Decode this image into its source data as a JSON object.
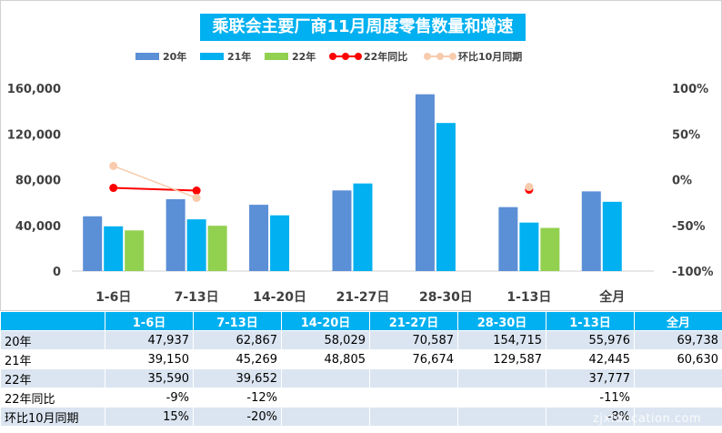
{
  "chart_data": {
    "type": "bar",
    "title": "乘联会主要厂商11月周度零售数量和增速",
    "categories": [
      "1-6日",
      "7-13日",
      "14-20日",
      "21-27日",
      "28-30日",
      "1-13日",
      "全月"
    ],
    "series": [
      {
        "name": "20年",
        "type": "bar",
        "axis": "left",
        "color": "#5b8fd6",
        "values": [
          47937,
          62867,
          58029,
          70587,
          154715,
          55976,
          69738
        ]
      },
      {
        "name": "21年",
        "type": "bar",
        "axis": "left",
        "color": "#00b0f0",
        "values": [
          39150,
          45269,
          48805,
          76674,
          129587,
          42445,
          60630
        ]
      },
      {
        "name": "22年",
        "type": "bar",
        "axis": "left",
        "color": "#92d050",
        "values": [
          35590,
          39652,
          null,
          null,
          null,
          37777,
          null
        ]
      },
      {
        "name": "22年同比",
        "type": "line",
        "axis": "right",
        "color": "#ff0000",
        "values": [
          -9,
          -12,
          null,
          null,
          null,
          -11,
          null
        ]
      },
      {
        "name": "环比10月同期",
        "type": "line",
        "axis": "right",
        "color": "#f8cbad",
        "values": [
          15,
          -20,
          null,
          null,
          null,
          -8,
          null
        ]
      }
    ],
    "ylim": [
      0,
      160000
    ],
    "yticks": [
      "0",
      "40,000",
      "80,000",
      "120,000",
      "160,000"
    ],
    "y2lim": [
      -100,
      100
    ],
    "y2ticks": [
      "-100%",
      "-50%",
      "0%",
      "50%",
      "100%"
    ],
    "legend_position": "top-center",
    "grid": false
  },
  "table": {
    "header": [
      "",
      "1-6日",
      "7-13日",
      "14-20日",
      "21-27日",
      "28-30日",
      "1-13日",
      "全月"
    ],
    "rows": [
      {
        "label": "20年",
        "cells": [
          "47,937",
          "62,867",
          "58,029",
          "70,587",
          "154,715",
          "55,976",
          "69,738"
        ]
      },
      {
        "label": "21年",
        "cells": [
          "39,150",
          "45,269",
          "48,805",
          "76,674",
          "129,587",
          "42,445",
          "60,630"
        ]
      },
      {
        "label": "22年",
        "cells": [
          "35,590",
          "39,652",
          "",
          "",
          "",
          "37,777",
          ""
        ]
      },
      {
        "label": "22年同比",
        "cells": [
          "-9%",
          "-12%",
          "",
          "",
          "",
          "-11%",
          ""
        ]
      },
      {
        "label": "环比10月同期",
        "cells": [
          "15%",
          "-20%",
          "",
          "",
          "",
          "-8%",
          ""
        ]
      }
    ]
  },
  "watermark": "zjxfducation.com"
}
